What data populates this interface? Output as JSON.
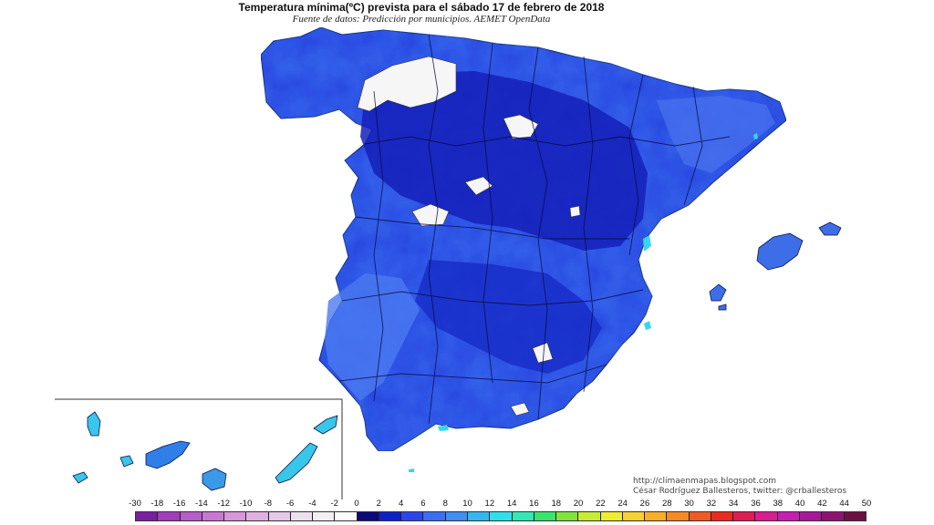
{
  "header": {
    "title": "Temperatura mínima(ºC) prevista para el sábado 17 de febrero de 2018",
    "subtitle": "Fuente de datos: Predicción por municipios. AEMET OpenData"
  },
  "credits": {
    "url": "http://climaenmapas.blogspot.com",
    "author": "César Rodríguez Ballesteros, twitter: @crballesteros"
  },
  "legend": {
    "unit": "ºC",
    "ticks": [
      "-30",
      "-18",
      "-16",
      "-14",
      "-12",
      "-10",
      "-8",
      "-6",
      "-4",
      "-2",
      "0",
      "2",
      "4",
      "6",
      "8",
      "10",
      "12",
      "14",
      "16",
      "18",
      "20",
      "22",
      "24",
      "26",
      "28",
      "30",
      "32",
      "34",
      "36",
      "38",
      "40",
      "42",
      "44",
      "50"
    ],
    "colors": [
      "#7a1fa0",
      "#a23dbb",
      "#b85cc8",
      "#c878d2",
      "#d696da",
      "#dfb0e0",
      "#e6c8e8",
      "#ece0ee",
      "#f3eef4",
      "#fbfbfb",
      "#0a0a78",
      "#1020c8",
      "#2d45e8",
      "#3c6ef0",
      "#3f8ef2",
      "#35b6f0",
      "#2fe0e8",
      "#34e8b4",
      "#3be36c",
      "#7fe43c",
      "#c8ec34",
      "#f0ec30",
      "#f8d030",
      "#f8ae2a",
      "#f68a28",
      "#f25a24",
      "#ec2a20",
      "#e01c54",
      "#d81e90",
      "#c61eb0",
      "#a8189a",
      "#8c1470",
      "#6e1040"
    ]
  },
  "map": {
    "regions": [
      {
        "name": "Península",
        "level": "0 a 4"
      },
      {
        "name": "Islas Baleares",
        "level": "4 a 8"
      },
      {
        "name": "Islas Canarias",
        "level": "6 a 14"
      }
    ]
  }
}
